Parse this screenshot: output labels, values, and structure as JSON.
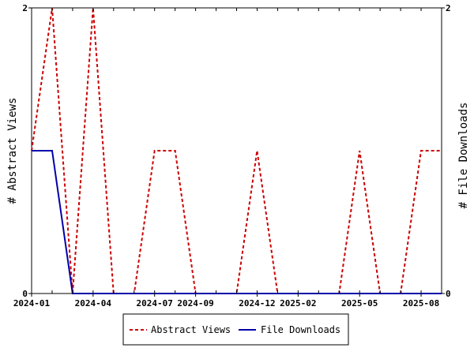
{
  "chart_data": {
    "type": "line",
    "x": [
      "2024-01",
      "2024-02",
      "2024-03",
      "2024-04",
      "2024-05",
      "2024-06",
      "2024-07",
      "2024-08",
      "2024-09",
      "2024-10",
      "2024-11",
      "2024-12",
      "2025-01",
      "2025-02",
      "2025-03",
      "2025-04",
      "2025-05",
      "2025-06",
      "2025-07",
      "2025-08",
      "2025-09"
    ],
    "x_tick_labels": [
      "2024-01",
      "2024-04",
      "2024-07",
      "2024-09",
      "2024-12",
      "2025-02",
      "2025-05",
      "2025-08"
    ],
    "series": [
      {
        "name": "Abstract Views",
        "values": [
          1,
          2,
          0,
          2,
          0,
          0,
          1,
          1,
          0,
          0,
          0,
          1,
          0,
          0,
          0,
          0,
          1,
          0,
          0,
          1,
          1
        ],
        "color": "#cc0000",
        "style": "dashed",
        "axis": "left"
      },
      {
        "name": "File Downloads",
        "values": [
          1,
          1,
          0,
          0,
          0,
          0,
          0,
          0,
          0,
          0,
          0,
          0,
          0,
          0,
          0,
          0,
          0,
          0,
          0,
          0,
          0
        ],
        "color": "#0000aa",
        "style": "solid",
        "axis": "right"
      }
    ],
    "ylabel": "# Abstract Views",
    "ylabel_right": "# File Downloads",
    "ylim": [
      0,
      2
    ],
    "y_ticks": [
      "0",
      "2"
    ],
    "y_ticks_right": [
      "0",
      "2"
    ],
    "grid": false,
    "legend_position": "bottom"
  }
}
